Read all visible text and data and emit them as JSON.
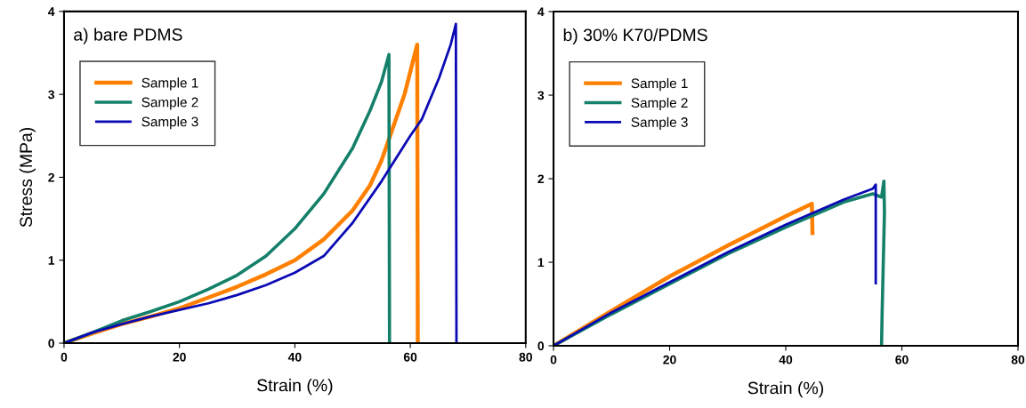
{
  "chart_data": [
    {
      "type": "line",
      "title": "a) bare PDMS",
      "xlabel": "Strain (%)",
      "ylabel": "Stress (MPa)",
      "xlim": [
        0,
        80
      ],
      "ylim": [
        0,
        4
      ],
      "xticks": [
        0,
        20,
        40,
        60,
        80
      ],
      "yticks": [
        0,
        1,
        2,
        3,
        4
      ],
      "legend": "top left",
      "grid": false,
      "series": [
        {
          "name": "Sample 1",
          "color": "#ff8000",
          "x": [
            0,
            5,
            10,
            15,
            20,
            25,
            30,
            35,
            40,
            45,
            50,
            53,
            55,
            57,
            59,
            61.2,
            61.3
          ],
          "values": [
            0,
            0.12,
            0.23,
            0.32,
            0.42,
            0.55,
            0.68,
            0.83,
            1.0,
            1.25,
            1.6,
            1.9,
            2.2,
            2.6,
            3.0,
            3.6,
            0
          ]
        },
        {
          "name": "Sample 2",
          "color": "#14806a",
          "x": [
            0,
            5,
            10,
            15,
            20,
            25,
            30,
            35,
            40,
            45,
            50,
            53,
            55,
            56.3,
            56.4
          ],
          "values": [
            0,
            0.13,
            0.27,
            0.38,
            0.5,
            0.65,
            0.82,
            1.05,
            1.38,
            1.8,
            2.35,
            2.8,
            3.15,
            3.48,
            0
          ]
        },
        {
          "name": "Sample 3",
          "color": "#0a0ab4",
          "x": [
            0,
            5,
            10,
            15,
            20,
            25,
            30,
            35,
            40,
            45,
            50,
            55,
            60,
            62,
            65,
            67,
            67.9,
            68
          ],
          "values": [
            0,
            0.13,
            0.23,
            0.32,
            0.4,
            0.48,
            0.58,
            0.7,
            0.85,
            1.05,
            1.45,
            1.95,
            2.5,
            2.7,
            3.2,
            3.6,
            3.85,
            0
          ]
        }
      ]
    },
    {
      "type": "line",
      "title": "b) 30% K70/PDMS",
      "xlabel": "Strain (%)",
      "xlim": [
        0,
        80
      ],
      "ylim": [
        0,
        4
      ],
      "xticks": [
        0,
        20,
        40,
        60,
        80
      ],
      "yticks": [
        0,
        1,
        2,
        3,
        4
      ],
      "legend": "top left",
      "grid": false,
      "series": [
        {
          "name": "Sample 1",
          "color": "#ff8000",
          "x": [
            0,
            10,
            20,
            30,
            40,
            44.5,
            44.6
          ],
          "values": [
            0,
            0.42,
            0.83,
            1.2,
            1.55,
            1.7,
            1.35
          ]
        },
        {
          "name": "Sample 2",
          "color": "#14806a",
          "x": [
            0,
            10,
            20,
            30,
            40,
            50,
            55,
            56.5,
            56.9,
            57.0,
            56.8,
            56.6,
            56.5
          ],
          "values": [
            0,
            0.38,
            0.74,
            1.1,
            1.42,
            1.72,
            1.82,
            1.78,
            1.97,
            1.6,
            1.0,
            0.4,
            0
          ]
        },
        {
          "name": "Sample 3",
          "color": "#0a0ab4",
          "x": [
            0,
            10,
            20,
            30,
            40,
            50,
            55,
            55.5,
            55.5
          ],
          "values": [
            0,
            0.4,
            0.76,
            1.12,
            1.45,
            1.75,
            1.88,
            1.93,
            0.75
          ]
        }
      ]
    }
  ]
}
